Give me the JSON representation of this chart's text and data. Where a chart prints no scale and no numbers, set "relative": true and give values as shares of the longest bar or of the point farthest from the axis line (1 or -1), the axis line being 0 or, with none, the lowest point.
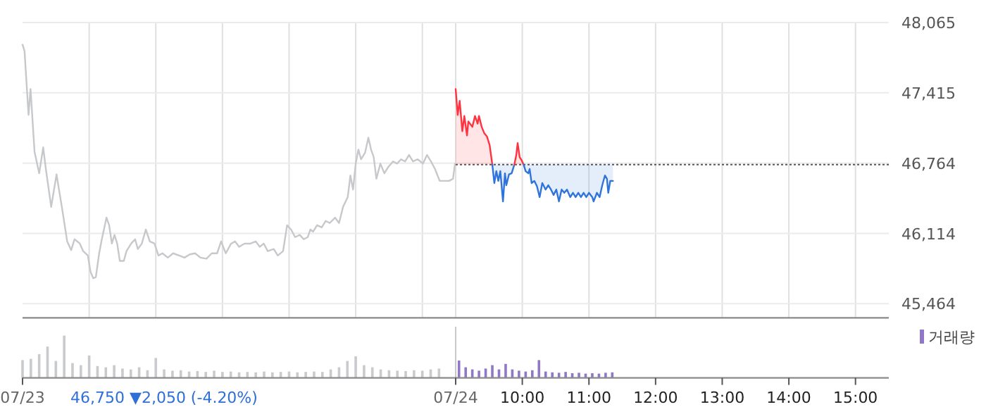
{
  "chart_data": [
    {
      "type": "line",
      "xlim": [
        2.5,
        15.5
      ],
      "ylim": [
        45333,
        48065
      ],
      "grid": true,
      "tick_labels": "y",
      "xticks": [
        {
          "value": 3.5,
          "label": null
        },
        {
          "value": 4.5,
          "label": null
        },
        {
          "value": 5.5,
          "label": null
        },
        {
          "value": 6.5,
          "label": null
        },
        {
          "value": 7.5,
          "label": null
        },
        {
          "value": 8.5,
          "label": null
        },
        {
          "value": 9,
          "label": null
        },
        {
          "value": 10,
          "label": null
        },
        {
          "value": 11,
          "label": null
        },
        {
          "value": 12,
          "label": null
        },
        {
          "value": 13,
          "label": null
        },
        {
          "value": 14,
          "label": null
        },
        {
          "value": 15,
          "label": null
        }
      ],
      "yticks": [
        {
          "value": 45464,
          "label": "45,464"
        },
        {
          "value": 46114,
          "label": "46,114"
        },
        {
          "value": 46764,
          "label": "46,764"
        },
        {
          "value": 47415,
          "label": "47,415"
        },
        {
          "value": 48065,
          "label": "48,065"
        }
      ],
      "ref_lines": [
        {
          "axis": "y",
          "value": 46750,
          "color": "#555555",
          "line_style": "dotted"
        }
      ],
      "series": [
        {
          "color": "#c6c8cc",
          "x": [
            2.5,
            2.53,
            2.59,
            2.62,
            2.68,
            2.75,
            2.81,
            2.85,
            2.93,
            3.01,
            3.1,
            3.17,
            3.23,
            3.28,
            3.36,
            3.41,
            3.48,
            3.52,
            3.56,
            3.6,
            3.65,
            3.69,
            3.76,
            3.8,
            3.84,
            3.88,
            3.92,
            3.96,
            4.02,
            4.06,
            4.13,
            4.19,
            4.23,
            4.29,
            4.35,
            4.41,
            4.48,
            4.54,
            4.6,
            4.68,
            4.76,
            4.85,
            4.93,
            5.01,
            5.09,
            5.17,
            5.26,
            5.34,
            5.42,
            5.48,
            5.55,
            5.63,
            5.69,
            5.75,
            5.83,
            5.92,
            6.0,
            6.06,
            6.12,
            6.18,
            6.27,
            6.33,
            6.41,
            6.47,
            6.53,
            6.59,
            6.66,
            6.72,
            6.78,
            6.82,
            6.86,
            6.92,
            6.99,
            7.05,
            7.11,
            7.19,
            7.25,
            7.31,
            7.38,
            7.42,
            7.46,
            7.5,
            7.54,
            7.58,
            7.64,
            7.69,
            7.73,
            7.77,
            7.81,
            7.87,
            7.93,
            7.99,
            8.06,
            8.12,
            8.18,
            8.24,
            8.3,
            8.36,
            8.43,
            8.51,
            8.57,
            8.63,
            8.69,
            8.76,
            8.82,
            8.9,
            8.96,
            8.99
          ],
          "values": [
            47860,
            47800,
            47210,
            47450,
            46870,
            46670,
            46910,
            46710,
            46360,
            46660,
            46320,
            46040,
            45960,
            46060,
            46020,
            45950,
            45910,
            45760,
            45700,
            45710,
            45930,
            46060,
            46260,
            46190,
            46020,
            46100,
            46020,
            45860,
            45860,
            45950,
            46020,
            46060,
            45970,
            46020,
            46150,
            46040,
            46020,
            45910,
            45930,
            45890,
            45930,
            45910,
            45890,
            45920,
            45930,
            45890,
            45880,
            45930,
            45930,
            46040,
            45930,
            46020,
            46040,
            45990,
            46020,
            46020,
            46040,
            45990,
            46020,
            45950,
            45970,
            45910,
            45950,
            46190,
            46150,
            46080,
            46100,
            46060,
            46080,
            46150,
            46130,
            46190,
            46170,
            46230,
            46210,
            46260,
            46210,
            46360,
            46450,
            46650,
            46520,
            46760,
            46890,
            46800,
            46860,
            47000,
            46890,
            46820,
            46620,
            46760,
            46670,
            46730,
            46780,
            46760,
            46800,
            46780,
            46840,
            46780,
            46800,
            46760,
            46840,
            46780,
            46710,
            46600,
            46600,
            46600,
            46620,
            46760
          ]
        },
        {
          "color": "#ff3340",
          "x": [
            9.0,
            9.03,
            9.06,
            9.1,
            9.13,
            9.17,
            9.19,
            9.25,
            9.29,
            9.33,
            9.35,
            9.39,
            9.43,
            9.47,
            9.51,
            9.55
          ],
          "values": [
            47450,
            47210,
            47340,
            47060,
            47200,
            47020,
            47150,
            47100,
            47200,
            47130,
            47200,
            47100,
            47040,
            47010,
            46930,
            46750
          ],
          "lower": [
            46750,
            46750,
            46750,
            46750,
            46750,
            46750,
            46750,
            46750,
            46750,
            46750,
            46750,
            46750,
            46750,
            46750,
            46750,
            46750
          ],
          "upper": [
            47450,
            47210,
            47340,
            47060,
            47200,
            47020,
            47150,
            47100,
            47200,
            47130,
            47200,
            47100,
            47040,
            47010,
            46930,
            46750
          ]
        },
        {
          "color": "#2f74dc",
          "x": [
            9.55,
            9.58,
            9.61,
            9.64,
            9.67,
            9.71,
            9.74,
            9.76,
            9.8,
            9.84,
            9.88
          ],
          "values": [
            46750,
            46580,
            46690,
            46600,
            46690,
            46410,
            46670,
            46560,
            46660,
            46670,
            46750
          ],
          "lower": [
            46750,
            46580,
            46690,
            46600,
            46690,
            46410,
            46670,
            46560,
            46660,
            46670,
            46750
          ],
          "upper": [
            46750,
            46750,
            46750,
            46750,
            46750,
            46750,
            46750,
            46750,
            46750,
            46750,
            46750
          ]
        },
        {
          "color": "#ff3340",
          "x": [
            9.88,
            9.91,
            9.93,
            9.96,
            9.99,
            10.02
          ],
          "values": [
            46750,
            46840,
            46950,
            46820,
            46790,
            46750
          ],
          "lower": [
            46750,
            46750,
            46750,
            46750,
            46750,
            46750
          ],
          "upper": [
            46750,
            46840,
            46950,
            46820,
            46790,
            46750
          ]
        },
        {
          "color": "#2f74dc",
          "x": [
            10.02,
            10.05,
            10.09,
            10.11,
            10.14,
            10.18,
            10.22,
            10.26,
            10.3,
            10.35,
            10.39,
            10.43,
            10.47,
            10.51,
            10.55,
            10.59,
            10.63,
            10.67,
            10.72,
            10.76,
            10.8,
            10.84,
            10.88,
            10.92,
            10.96,
            11.0,
            11.05,
            11.07,
            11.12,
            11.16,
            11.2,
            11.24,
            11.27,
            11.29,
            11.32,
            11.36
          ],
          "values": [
            46750,
            46690,
            46670,
            46710,
            46580,
            46600,
            46550,
            46450,
            46580,
            46520,
            46560,
            46520,
            46470,
            46520,
            46410,
            46520,
            46490,
            46520,
            46450,
            46490,
            46450,
            46490,
            46450,
            46490,
            46450,
            46490,
            46450,
            46410,
            46490,
            46450,
            46560,
            46650,
            46620,
            46490,
            46600,
            46600
          ],
          "lower": [
            46750,
            46690,
            46670,
            46710,
            46580,
            46600,
            46550,
            46450,
            46580,
            46520,
            46560,
            46520,
            46470,
            46520,
            46410,
            46520,
            46490,
            46520,
            46450,
            46490,
            46450,
            46490,
            46450,
            46490,
            46450,
            46490,
            46450,
            46410,
            46490,
            46450,
            46560,
            46650,
            46620,
            46490,
            46600,
            46600
          ],
          "upper": [
            46750,
            46750,
            46750,
            46750,
            46750,
            46750,
            46750,
            46750,
            46750,
            46750,
            46750,
            46750,
            46750,
            46750,
            46750,
            46750,
            46750,
            46750,
            46750,
            46750,
            46750,
            46750,
            46750,
            46750,
            46750,
            46750,
            46750,
            46750,
            46750,
            46750,
            46750,
            46750,
            46750,
            46750,
            46750,
            46750
          ]
        }
      ]
    },
    {
      "type": "bar",
      "relative": true,
      "xlim": [
        2.5,
        15.5
      ],
      "tick_labels": "x",
      "legend": "top right",
      "xticks": [
        {
          "value": 2.5,
          "label": "07/23"
        },
        {
          "value": 9,
          "label": "07/24"
        },
        {
          "value": 10,
          "label": "10:00"
        },
        {
          "value": 11,
          "label": "11:00"
        },
        {
          "value": 12,
          "label": "12:00"
        },
        {
          "value": 13,
          "label": "13:00"
        },
        {
          "value": 14,
          "label": "14:00"
        },
        {
          "value": 15,
          "label": "15:00"
        }
      ],
      "ref_lines": [
        {
          "axis": "x",
          "value": 9,
          "color": "#c8c8c8"
        }
      ],
      "annotations": [
        "46,750 ▼2,050 (-4.20%)"
      ],
      "series": [
        {
          "color": "#c9cacd",
          "x": [
            2.5,
            2.625,
            2.75,
            2.875,
            3,
            3.125,
            3.25,
            3.375,
            3.5,
            3.625,
            3.75,
            3.875,
            4,
            4.125,
            4.25,
            4.375,
            4.5,
            4.625,
            4.75,
            4.875,
            5,
            5.125,
            5.25,
            5.375,
            5.5,
            5.625,
            5.75,
            5.875,
            6,
            6.125,
            6.25,
            6.375,
            6.5,
            6.625,
            6.75,
            6.875,
            7,
            7.125,
            7.25,
            7.375,
            7.5,
            7.625,
            7.75,
            7.875,
            8,
            8.125,
            8.25,
            8.375,
            8.5,
            8.625,
            8.75
          ],
          "values": [
            0.42,
            0.45,
            0.56,
            0.74,
            0.4,
            1.0,
            0.35,
            0.3,
            0.53,
            0.28,
            0.25,
            0.3,
            0.22,
            0.2,
            0.25,
            0.18,
            0.47,
            0.2,
            0.17,
            0.18,
            0.15,
            0.16,
            0.14,
            0.17,
            0.14,
            0.15,
            0.13,
            0.14,
            0.13,
            0.15,
            0.13,
            0.14,
            0.15,
            0.13,
            0.14,
            0.15,
            0.14,
            0.2,
            0.25,
            0.4,
            0.51,
            0.3,
            0.25,
            0.2,
            0.18,
            0.17,
            0.16,
            0.18,
            0.17,
            0.2,
            0.22
          ]
        },
        {
          "name": "거래량",
          "color": "#9178c6",
          "x": [
            9.05,
            9.15,
            9.25,
            9.35,
            9.45,
            9.55,
            9.65,
            9.75,
            9.85,
            9.95,
            10.05,
            10.15,
            10.25,
            10.35,
            10.45,
            10.55,
            10.65,
            10.75,
            10.85,
            10.95,
            11.05,
            11.15,
            11.25,
            11.35
          ],
          "values": [
            0.41,
            0.25,
            0.2,
            0.17,
            0.22,
            0.3,
            0.2,
            0.33,
            0.2,
            0.17,
            0.15,
            0.18,
            0.42,
            0.15,
            0.13,
            0.12,
            0.14,
            0.11,
            0.12,
            0.1,
            0.11,
            0.1,
            0.12,
            0.13
          ]
        }
      ]
    }
  ]
}
